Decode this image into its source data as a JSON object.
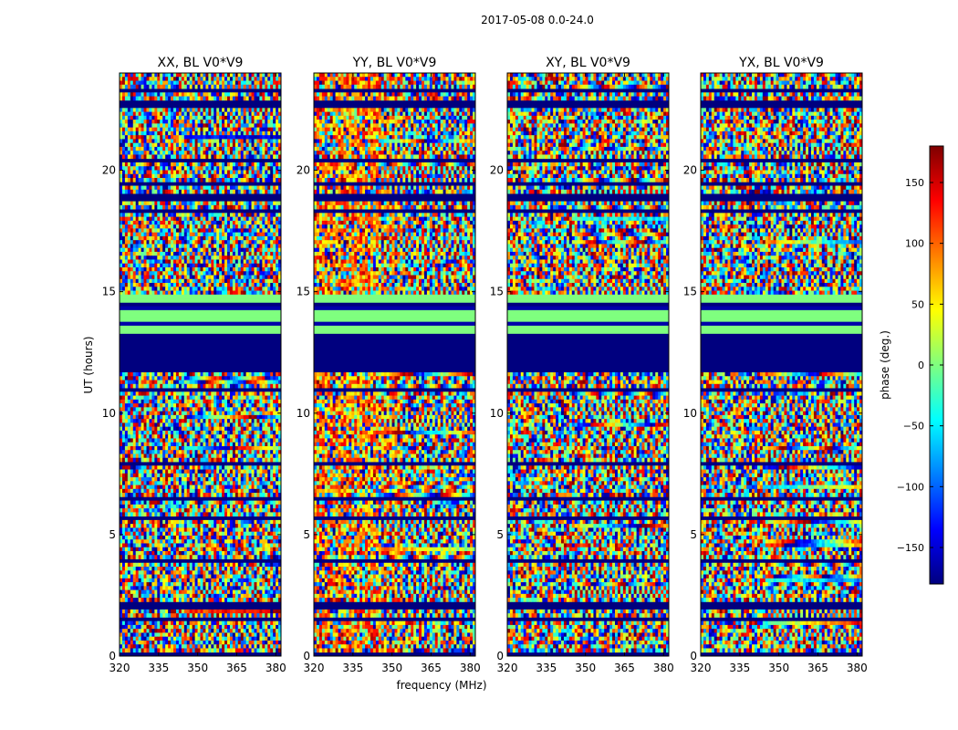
{
  "figure": {
    "suptitle": "2017-05-08 0.0-24.0"
  },
  "chart_data": {
    "type": "heatmap",
    "title": "2017-05-08 0.0-24.0",
    "xlabel": "frequency (MHz)",
    "ylabel": "UT (hours)",
    "xlim": [
      320,
      382
    ],
    "ylim": [
      0,
      24
    ],
    "xticks": [
      320,
      335,
      350,
      365,
      380
    ],
    "yticks": [
      0,
      5,
      10,
      15,
      20
    ],
    "panels": [
      {
        "title": "XX, BL V0*V9",
        "pol": "XX"
      },
      {
        "title": "YY, BL V0*V9",
        "pol": "YY"
      },
      {
        "title": "XY, BL V0*V9",
        "pol": "XY"
      },
      {
        "title": "YX, BL V0*V9",
        "pol": "YX"
      }
    ],
    "flagged_ut_ranges": [
      [
        11.6,
        13.3
      ]
    ],
    "constant_phase_ut_range": [
      13.3,
      14.8
    ],
    "colorbar": {
      "label": "phase (deg.)",
      "range": [
        -180,
        180
      ],
      "ticks": [
        150,
        100,
        50,
        0,
        -50,
        -100,
        -150
      ],
      "tick_labels": [
        "150",
        "100",
        "50",
        "0",
        "−50",
        "−100",
        "−150"
      ],
      "colormap": "jet"
    }
  }
}
